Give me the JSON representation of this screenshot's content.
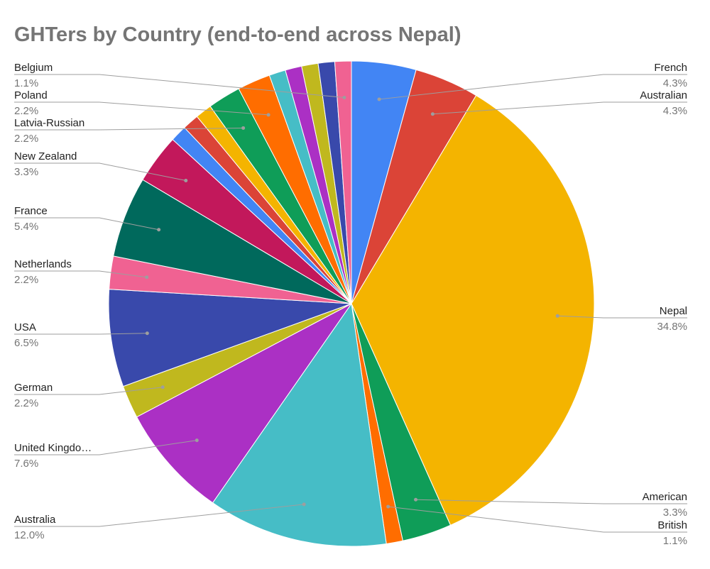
{
  "chart_data": {
    "type": "pie",
    "title": "GHTers by Country (end-to-end across Nepal)",
    "categories": [
      "French",
      "Australian",
      "Nepal",
      "American",
      "British",
      "Australia",
      "United Kingdo…",
      "German",
      "USA",
      "Netherlands",
      "France",
      "New Zealand",
      null,
      null,
      null,
      "Latvia-Russian",
      "Poland",
      null,
      null,
      null,
      null,
      "Belgium"
    ],
    "values": [
      4.3,
      4.3,
      34.8,
      3.3,
      1.1,
      12.0,
      7.6,
      2.2,
      6.5,
      2.2,
      5.4,
      3.3,
      1.1,
      1.1,
      1.1,
      2.2,
      2.2,
      1.1,
      1.1,
      1.1,
      1.1,
      1.1
    ],
    "value_labels": [
      "4.3%",
      "4.3%",
      "34.8%",
      "3.3%",
      "1.1%",
      "12.0%",
      "7.6%",
      "2.2%",
      "6.5%",
      "2.2%",
      "5.4%",
      "3.3%",
      null,
      null,
      null,
      "2.2%",
      "2.2%",
      null,
      null,
      null,
      null,
      "1.1%"
    ],
    "colors": [
      "#4285f4",
      "#db4437",
      "#f4b400",
      "#0f9d58",
      "#ff6d00",
      "#46bdc6",
      "#ab30c4",
      "#c0b81e",
      "#3949ab",
      "#f06292",
      "#00695c",
      "#c2185b",
      "#4285f4",
      "#db4437",
      "#f4b400",
      "#0f9d58",
      "#ff6d00",
      "#46bdc6",
      "#ab30c4",
      "#c0b81e",
      "#3949ab",
      "#f06292"
    ]
  }
}
